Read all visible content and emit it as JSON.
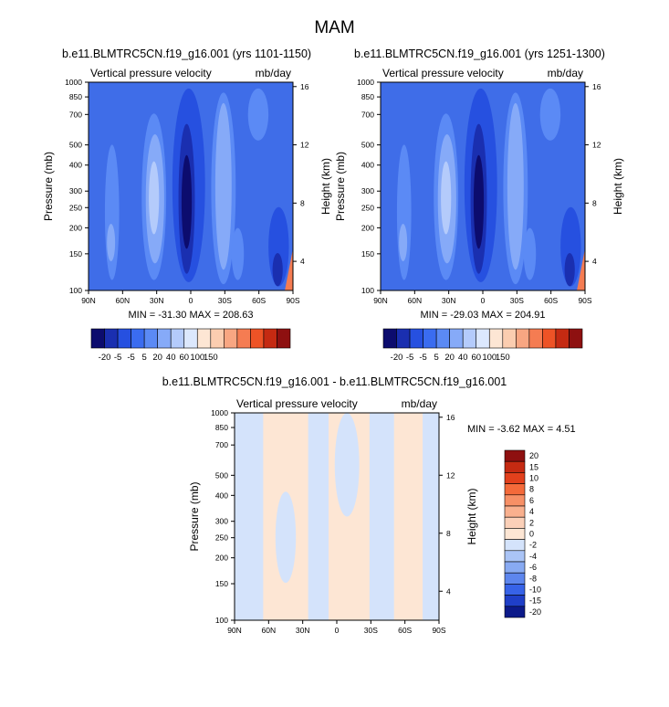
{
  "figure": {
    "title": "MAM"
  },
  "chart_data": [
    {
      "type": "heatmap",
      "title": "b.e11.BLMTRC5CN.f19_g16.001 (yrs 1101-1150)",
      "left_label": "Vertical pressure velocity",
      "right_label": "mb/day",
      "ylabel": "Pressure (mb)",
      "ylabel_right": "Height (km)",
      "x_ticks": [
        "90N",
        "60N",
        "30N",
        "0",
        "30S",
        "60S",
        "90S"
      ],
      "y_ticks": [
        "100",
        "150",
        "200",
        "250",
        "300",
        "400",
        "500",
        "700",
        "850",
        "1000"
      ],
      "y_ticks_right": [
        "16",
        "12",
        "8",
        "4"
      ],
      "ylim": [
        1000,
        100
      ],
      "y_scale": "log",
      "stats": "MIN = -31.30  MAX = 208.63",
      "colorbar_labels": [
        "-20",
        "-5",
        "-5",
        "5",
        "20",
        "40",
        "60",
        "100",
        "150"
      ]
    },
    {
      "type": "heatmap",
      "title": "b.e11.BLMTRC5CN.f19_g16.001 (yrs 1251-1300)",
      "left_label": "Vertical pressure velocity",
      "right_label": "mb/day",
      "ylabel": "Pressure (mb)",
      "ylabel_right": "Height (km)",
      "x_ticks": [
        "90N",
        "60N",
        "30N",
        "0",
        "30S",
        "60S",
        "90S"
      ],
      "y_ticks": [
        "100",
        "150",
        "200",
        "250",
        "300",
        "400",
        "500",
        "700",
        "850",
        "1000"
      ],
      "y_ticks_right": [
        "16",
        "12",
        "8",
        "4"
      ],
      "ylim": [
        1000,
        100
      ],
      "y_scale": "log",
      "stats": "MIN = -29.03  MAX = 204.91",
      "colorbar_labels": [
        "-20",
        "-5",
        "-5",
        "5",
        "20",
        "40",
        "60",
        "100",
        "150"
      ]
    },
    {
      "type": "heatmap",
      "title": "b.e11.BLMTRC5CN.f19_g16.001 - b.e11.BLMTRC5CN.f19_g16.001",
      "left_label": "Vertical pressure velocity",
      "right_label": "mb/day",
      "ylabel": "Pressure (mb)",
      "ylabel_right": "Height (km)",
      "x_ticks": [
        "90N",
        "60N",
        "30N",
        "0",
        "30S",
        "60S",
        "90S"
      ],
      "y_ticks": [
        "100",
        "150",
        "200",
        "250",
        "300",
        "400",
        "500",
        "700",
        "850",
        "1000"
      ],
      "y_ticks_right": [
        "16",
        "12",
        "8",
        "4"
      ],
      "ylim": [
        1000,
        100
      ],
      "y_scale": "log",
      "stats": "MIN =  -3.62  MAX =   4.51",
      "colorbar_labels": [
        "20",
        "15",
        "10",
        "8",
        "6",
        "4",
        "2",
        "0",
        "-2",
        "-4",
        "-6",
        "-8",
        "-10",
        "-15",
        "-20"
      ]
    }
  ],
  "colors": {
    "top_colorbar": [
      "#0c0c6e",
      "#1a2fb0",
      "#2650e0",
      "#3a6cf0",
      "#5b8af5",
      "#86aaf8",
      "#b4cbfb",
      "#dce8fd",
      "#fde6d4",
      "#fbcdb0",
      "#f8a682",
      "#f57c52",
      "#ee5326",
      "#c52a12",
      "#8e1010"
    ],
    "diff_colorbar": [
      "#8e1010",
      "#c52a12",
      "#e2401c",
      "#f46a3a",
      "#f79066",
      "#f9b08e",
      "#fbd0b8",
      "#fde6d4",
      "#d4e3fb",
      "#aac4f6",
      "#88aaf2",
      "#5d86ee",
      "#3763e8",
      "#1f3fc8",
      "#0c1a8a"
    ],
    "field_bg": "#3f6de8"
  }
}
